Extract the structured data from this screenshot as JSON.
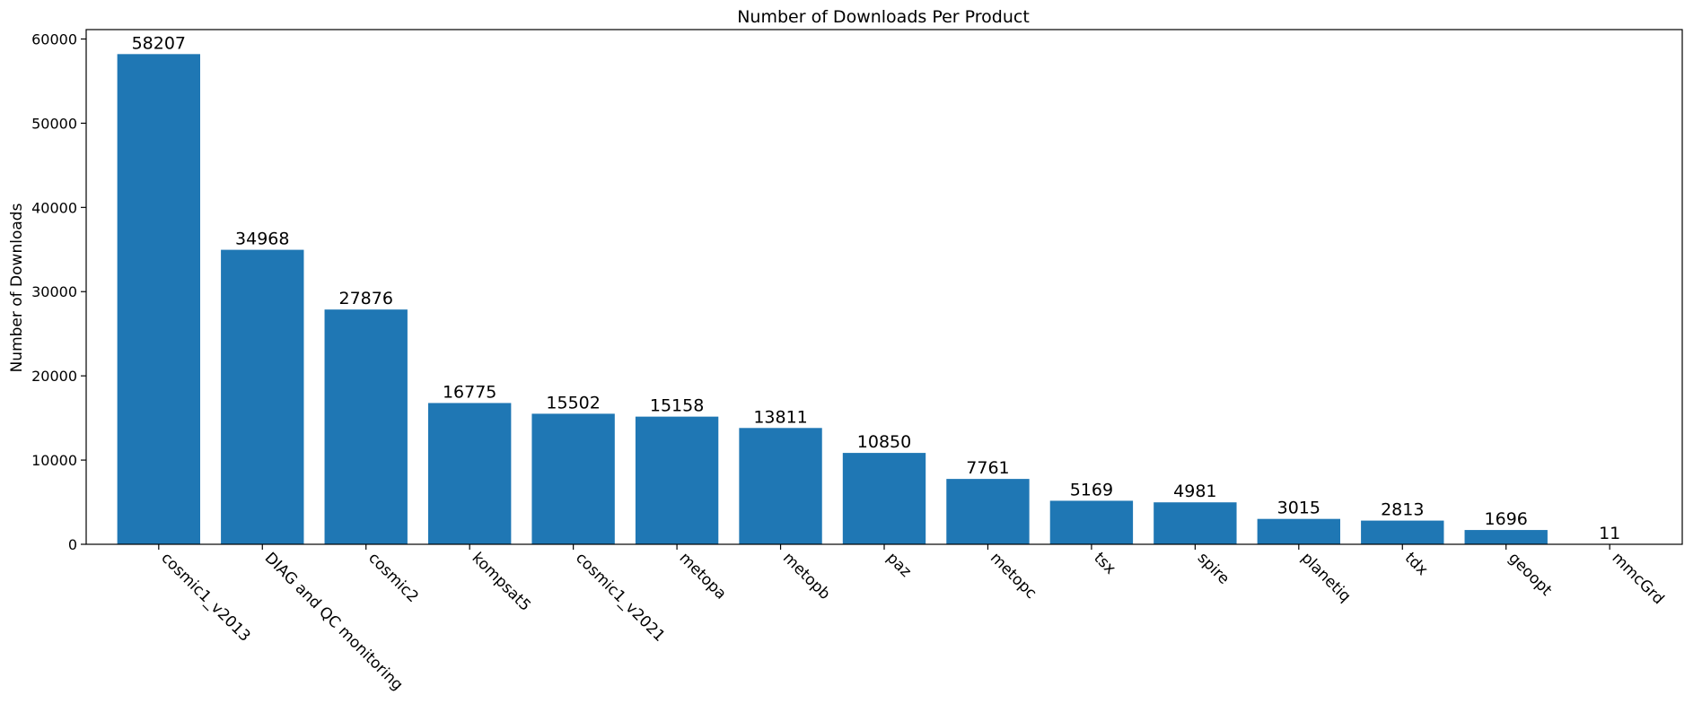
{
  "chart_data": {
    "type": "bar",
    "title": "Number of Downloads Per Product",
    "xlabel": "",
    "ylabel": "Number of Downloads",
    "categories": [
      "cosmic1_v2013",
      "DIAG and QC monitoring",
      "cosmic2",
      "kompsat5",
      "cosmic1_v2021",
      "metopa",
      "metopb",
      "paz",
      "metopc",
      "tsx",
      "spire",
      "planetiq",
      "tdx",
      "geoopt",
      "mmcGrd"
    ],
    "values": [
      58207,
      34968,
      27876,
      16775,
      15502,
      15158,
      13811,
      10850,
      7761,
      5169,
      4981,
      3015,
      2813,
      1696,
      11
    ],
    "ylim": [
      0,
      61117
    ],
    "yticks": [
      0,
      10000,
      20000,
      30000,
      40000,
      50000,
      60000
    ],
    "grid": false,
    "bar_color": "#1f77b4",
    "tick_label_rotation": -45,
    "show_data_labels": true
  }
}
